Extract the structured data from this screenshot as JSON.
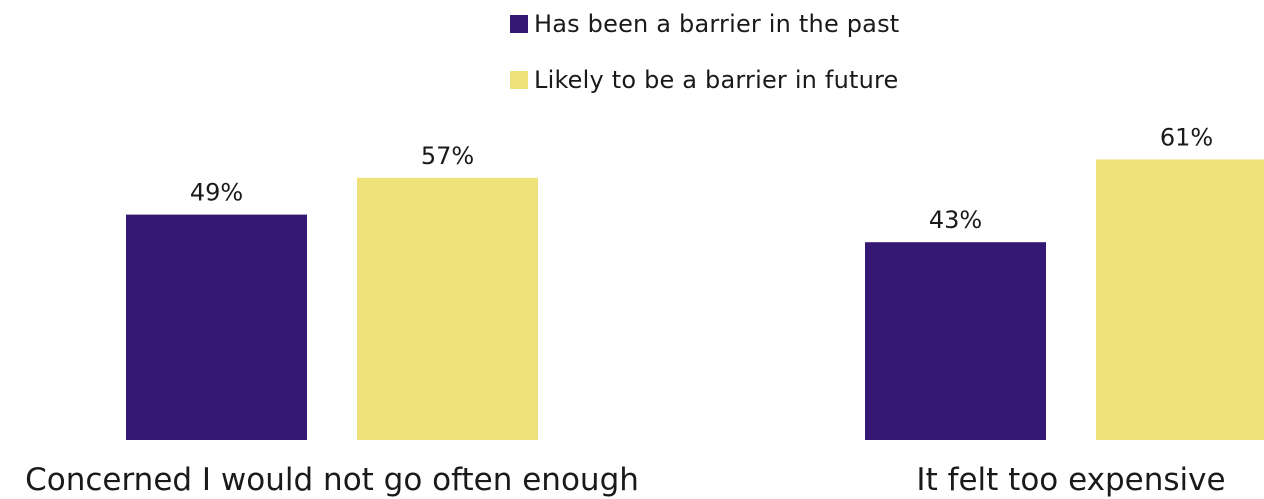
{
  "chart_data": {
    "type": "bar",
    "categories": [
      "Concerned I would not go often enough",
      "It felt too expensive"
    ],
    "series": [
      {
        "name": "Has been a barrier in the past",
        "values": [
          49,
          43
        ],
        "labels": [
          "49%",
          "43%"
        ],
        "color": "#341874"
      },
      {
        "name": "Likely to be a barrier in future",
        "values": [
          57,
          61
        ],
        "labels": [
          "57%",
          "61%"
        ],
        "color": "#F0E27B"
      }
    ],
    "unit": "%",
    "ylim": [
      0,
      80
    ],
    "grid": false,
    "legend_position": "top-center",
    "title": "",
    "xlabel": "",
    "ylabel": ""
  }
}
